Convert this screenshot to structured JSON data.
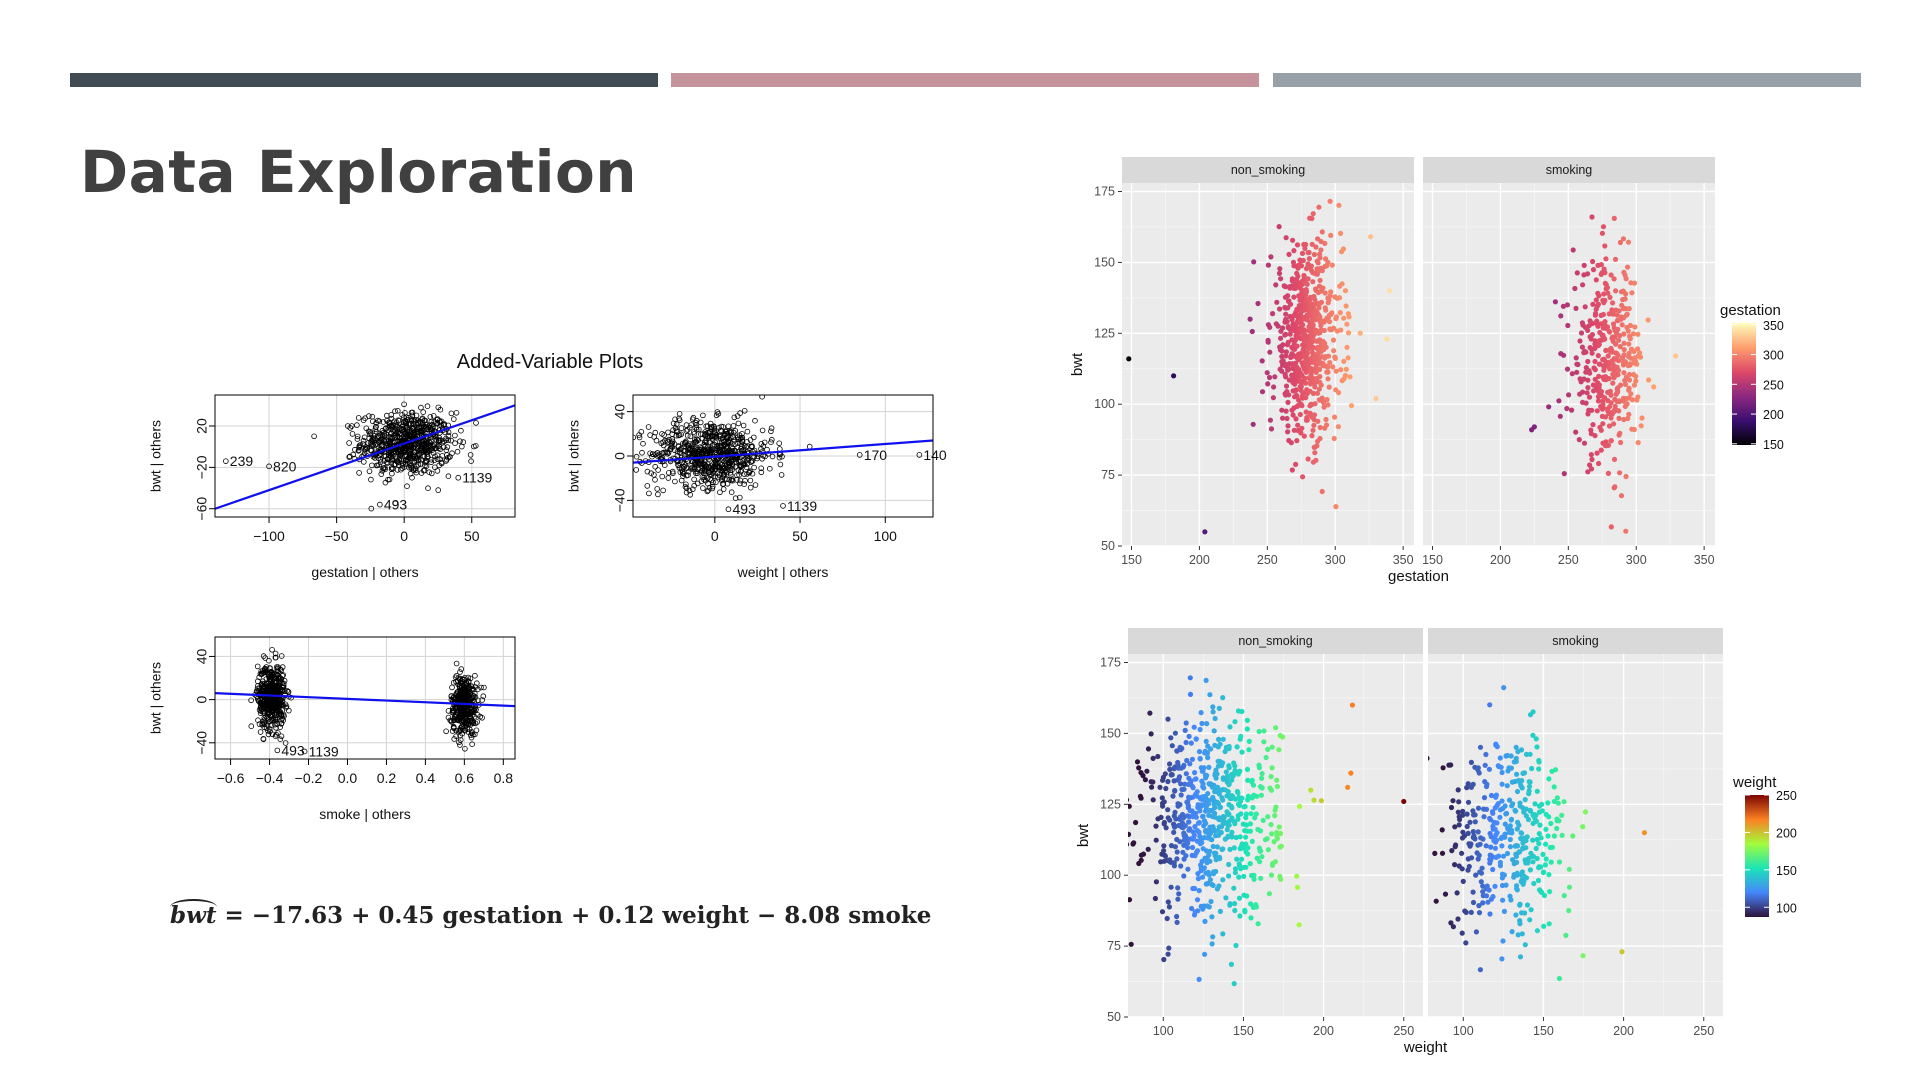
{
  "slide": {
    "title": "Data Exploration",
    "header_bars": [
      {
        "color": "#404b53"
      },
      {
        "color": "#c4939b"
      },
      {
        "color": "#98a0a8"
      }
    ],
    "formula": {
      "lhs": "bwt",
      "rhs": "= −17.63 + 0.45 gestation + 0.12 weight − 8.08 smoke"
    }
  },
  "chart_data": [
    {
      "type": "scatter",
      "title": "Added-Variable Plots",
      "panels": [
        {
          "name": "gestation",
          "xlabel": "gestation | others",
          "ylabel": "bwt | others",
          "xlim": [
            -140,
            82
          ],
          "ylim": [
            -68,
            50
          ],
          "xticks": [
            -100,
            -50,
            0,
            50
          ],
          "yticks": [
            -60,
            -20,
            20
          ],
          "clusters": [
            {
              "cx": 2,
              "cy": 3,
              "sx": 17,
              "sy": 15,
              "n": 700
            }
          ],
          "fit": {
            "x0": -140,
            "y0": -60,
            "x1": 82,
            "y1": 40
          },
          "outliers": [
            {
              "label": "239",
              "x": -132,
              "y": -14
            },
            {
              "label": "820",
              "x": -100,
              "y": -19
            },
            {
              "label": "1139",
              "x": 40,
              "y": -30
            },
            {
              "label": "493",
              "x": -18,
              "y": -56
            }
          ]
        },
        {
          "name": "weight",
          "xlabel": "weight | others",
          "ylabel": "bwt | others",
          "xlim": [
            -48,
            128
          ],
          "ylim": [
            -55,
            55
          ],
          "xticks": [
            0,
            50,
            100
          ],
          "yticks": [
            -40,
            0,
            40
          ],
          "clusters": [
            {
              "cx": -2,
              "cy": 2,
              "sx": 18,
              "sy": 15,
              "n": 700
            }
          ],
          "fit": {
            "x0": -48,
            "y0": -6,
            "x1": 128,
            "y1": 14
          },
          "outliers": [
            {
              "label": "170",
              "x": 85,
              "y": 1
            },
            {
              "label": "140",
              "x": 120,
              "y": 1
            },
            {
              "label": "493",
              "x": 8,
              "y": -48
            },
            {
              "label": "1139",
              "x": 40,
              "y": -45
            }
          ]
        },
        {
          "name": "smoke",
          "xlabel": "smoke | others",
          "ylabel": "bwt | others",
          "xlim": [
            -0.68,
            0.86
          ],
          "ylim": [
            -55,
            58
          ],
          "xticks": [
            -0.6,
            -0.4,
            -0.2,
            0.0,
            0.2,
            0.4,
            0.6,
            0.8
          ],
          "xtick_labels": [
            "-0.6",
            "-0.4",
            "-0.2",
            "0.0",
            "0.2",
            "0.4",
            "0.6",
            "0.8"
          ],
          "yticks": [
            -40,
            0,
            40
          ],
          "clusters": [
            {
              "cx": -0.39,
              "cy": 3,
              "sx": 0.035,
              "sy": 15,
              "n": 500
            },
            {
              "cx": 0.6,
              "cy": -5,
              "sx": 0.035,
              "sy": 14,
              "n": 380
            }
          ],
          "fit": {
            "x0": -0.68,
            "y0": 6,
            "x1": 0.86,
            "y1": -6
          },
          "outliers": [
            {
              "label": "493",
              "x": -0.36,
              "y": -47
            },
            {
              "label": "1139",
              "x": -0.22,
              "y": -48
            }
          ]
        }
      ]
    },
    {
      "type": "scatter",
      "facets": [
        "non_smoking",
        "smoking"
      ],
      "xlabel": "gestation",
      "ylabel": "bwt",
      "xlim": [
        143,
        358
      ],
      "ylim": [
        50,
        178
      ],
      "xticks": [
        150,
        200,
        250,
        300,
        350
      ],
      "yticks": [
        50,
        75,
        100,
        125,
        150,
        175
      ],
      "legend": {
        "title": "gestation",
        "min": 148,
        "max": 353,
        "ticks": [
          150,
          200,
          250,
          300,
          350
        ],
        "placement": "right"
      },
      "colormap": [
        "#000004",
        "#3b0f70",
        "#8c2981",
        "#de4968",
        "#fe9f6d",
        "#fcfdbf"
      ],
      "clusters": [
        {
          "facet": "non_smoking",
          "cx": 279,
          "cy": 122,
          "sx": 13,
          "sy": 17,
          "n": 650
        },
        {
          "facet": "smoking",
          "cx": 279,
          "cy": 115,
          "sx": 13,
          "sy": 17,
          "n": 400
        }
      ],
      "outliers": [
        {
          "facet": "non_smoking",
          "x": 148,
          "y": 116
        },
        {
          "facet": "non_smoking",
          "x": 181,
          "y": 110
        },
        {
          "facet": "non_smoking",
          "x": 204,
          "y": 55
        },
        {
          "facet": "non_smoking",
          "x": 340,
          "y": 140
        },
        {
          "facet": "non_smoking",
          "x": 338,
          "y": 123
        },
        {
          "facet": "non_smoking",
          "x": 330,
          "y": 102
        },
        {
          "facet": "smoking",
          "x": 223,
          "y": 91
        },
        {
          "facet": "smoking",
          "x": 225,
          "y": 92
        },
        {
          "facet": "smoking",
          "x": 329,
          "y": 117
        }
      ]
    },
    {
      "type": "scatter",
      "facets": [
        "non_smoking",
        "smoking"
      ],
      "xlabel": "weight",
      "ylabel": "bwt",
      "xlim": [
        78,
        262
      ],
      "ylim": [
        50,
        178
      ],
      "xticks": [
        100,
        150,
        200,
        250
      ],
      "yticks": [
        50,
        75,
        100,
        125,
        150,
        175
      ],
      "legend": {
        "title": "weight",
        "min": 87,
        "max": 250,
        "ticks": [
          100,
          150,
          200,
          250
        ],
        "placement": "right"
      },
      "colormap": [
        "#30123b",
        "#4686fb",
        "#1be5b5",
        "#a2fc3c",
        "#fb8022",
        "#7a0403"
      ],
      "clusters": [
        {
          "facet": "non_smoking",
          "cx": 130,
          "cy": 120,
          "sx": 21,
          "sy": 18,
          "n": 650
        },
        {
          "facet": "smoking",
          "cx": 128,
          "cy": 114,
          "sx": 20,
          "sy": 17,
          "n": 400
        }
      ],
      "outliers": [
        {
          "facet": "non_smoking",
          "x": 250,
          "y": 126
        },
        {
          "facet": "non_smoking",
          "x": 218,
          "y": 160
        },
        {
          "facet": "non_smoking",
          "x": 215,
          "y": 131
        },
        {
          "facet": "non_smoking",
          "x": 217,
          "y": 136
        },
        {
          "facet": "smoking",
          "x": 213,
          "y": 115
        },
        {
          "facet": "smoking",
          "x": 199,
          "y": 73
        }
      ]
    }
  ]
}
